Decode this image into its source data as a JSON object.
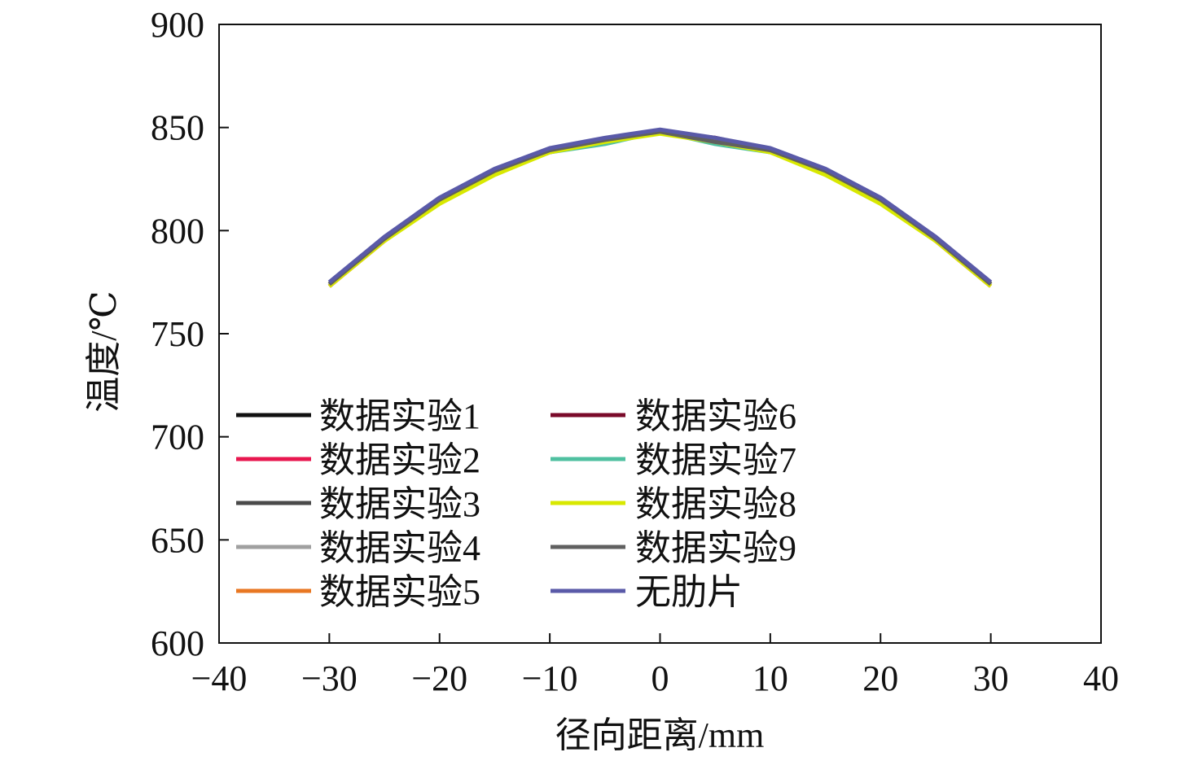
{
  "chart_data": {
    "type": "line",
    "title": "",
    "xlabel": "径向距离/mm",
    "ylabel": "温度/℃",
    "xlim": [
      -40,
      40
    ],
    "ylim": [
      600,
      900
    ],
    "xticks": [
      -40,
      -30,
      -20,
      -10,
      0,
      10,
      20,
      30,
      40
    ],
    "xtick_labels": [
      "−40",
      "−30",
      "−20",
      "−10",
      "0",
      "10",
      "20",
      "30",
      "40"
    ],
    "yticks": [
      600,
      650,
      700,
      750,
      800,
      850,
      900
    ],
    "ytick_labels": [
      "600",
      "650",
      "700",
      "750",
      "800",
      "850",
      "900"
    ],
    "grid": false,
    "legend_placement": "lower-left, two columns",
    "x": [
      -30,
      -25,
      -20,
      -15,
      -10,
      -5,
      0,
      5,
      10,
      15,
      20,
      25,
      30
    ],
    "series": [
      {
        "name": "数据实验1",
        "color": "#111111",
        "values": [
          774,
          796,
          815,
          829,
          839,
          844,
          848,
          844,
          839,
          829,
          815,
          796,
          774
        ]
      },
      {
        "name": "数据实验2",
        "color": "#e8174f",
        "values": [
          773,
          795,
          814,
          828,
          838,
          843,
          848,
          845,
          839,
          829,
          815,
          795,
          773
        ]
      },
      {
        "name": "数据实验3",
        "color": "#4a4a4a",
        "values": [
          774,
          796,
          815,
          829,
          839,
          844,
          848,
          844,
          839,
          829,
          815,
          796,
          774
        ]
      },
      {
        "name": "数据实验4",
        "color": "#a0a0a0",
        "values": [
          774,
          796,
          815,
          829,
          839,
          843,
          848,
          844,
          839,
          829,
          815,
          796,
          774
        ]
      },
      {
        "name": "数据实验5",
        "color": "#e87722",
        "values": [
          774,
          796,
          814,
          828,
          838,
          843,
          848,
          844,
          838,
          828,
          814,
          796,
          774
        ]
      },
      {
        "name": "数据实验6",
        "color": "#7a0a2a",
        "values": [
          773,
          796,
          815,
          829,
          839,
          844,
          848,
          845,
          839,
          829,
          815,
          796,
          774
        ]
      },
      {
        "name": "数据实验7",
        "color": "#4fc0a0",
        "values": [
          774,
          796,
          815,
          829,
          838,
          842,
          848,
          842,
          838,
          829,
          815,
          796,
          774
        ]
      },
      {
        "name": "数据实验8",
        "color": "#d8e800",
        "values": [
          773,
          795,
          813,
          827,
          838,
          843,
          847,
          843,
          838,
          827,
          813,
          795,
          773
        ]
      },
      {
        "name": "数据实验9",
        "color": "#606060",
        "values": [
          774,
          796,
          815,
          829,
          839,
          844,
          848,
          843,
          839,
          829,
          815,
          796,
          774
        ]
      },
      {
        "name": "无肋片",
        "color": "#5a5aa8",
        "values": [
          775,
          797,
          816,
          830,
          840,
          845,
          849,
          845,
          840,
          830,
          816,
          797,
          775
        ]
      }
    ]
  }
}
